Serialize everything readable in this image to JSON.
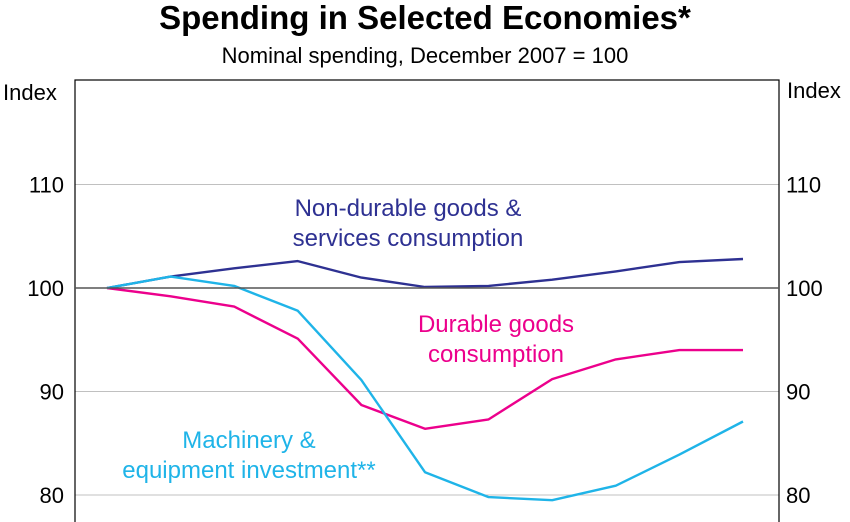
{
  "colors": {
    "nondurable": "#2e3192",
    "durable": "#ec008c",
    "machinery": "#1fb4e8",
    "grid": "#c0c0c0",
    "frame": "#000000"
  },
  "chart_data": {
    "type": "line",
    "title": "Spending in Selected Economies*",
    "subtitle": "Nominal spending, December 2007 = 100",
    "ylabel_left": "Index",
    "ylabel_right": "Index",
    "yticks": [
      80,
      90,
      100,
      110
    ],
    "ylim": [
      77,
      120
    ],
    "grid": true,
    "x": [
      0,
      1,
      2,
      3,
      4,
      5,
      6,
      7,
      8,
      9,
      10
    ],
    "series": [
      {
        "key": "nondurable",
        "name_lines": [
          "Non-durable goods &",
          "services consumption"
        ],
        "values": [
          100.0,
          101.1,
          101.9,
          102.6,
          101.0,
          100.1,
          100.2,
          100.8,
          101.6,
          102.5,
          102.8
        ]
      },
      {
        "key": "durable",
        "name_lines": [
          "Durable goods",
          "consumption"
        ],
        "values": [
          100.0,
          99.2,
          98.2,
          95.1,
          88.7,
          86.4,
          87.3,
          91.2,
          93.1,
          94.0,
          94.0
        ]
      },
      {
        "key": "machinery",
        "name_lines": [
          "Machinery &",
          "equipment investment**"
        ],
        "values": [
          100.0,
          101.1,
          100.2,
          97.8,
          91.1,
          82.2,
          79.8,
          79.5,
          80.9,
          83.9,
          87.1
        ]
      }
    ]
  }
}
